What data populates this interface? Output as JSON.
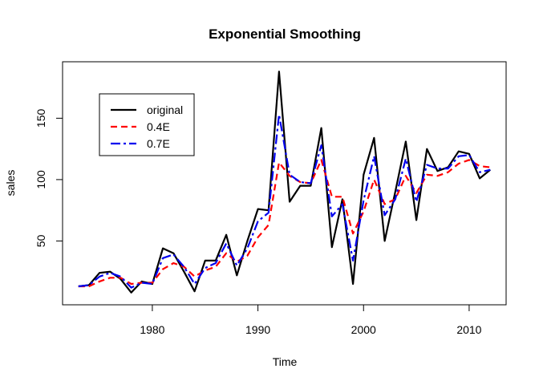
{
  "chart_data": {
    "type": "line",
    "title": "Exponential Smoothing",
    "xlabel": "Time",
    "ylabel": "sales",
    "xlim": [
      1971.5,
      2013.5
    ],
    "ylim": [
      -2,
      196
    ],
    "xticks": [
      1980,
      1990,
      2000,
      2010
    ],
    "yticks": [
      50,
      100,
      150
    ],
    "x": [
      1973,
      1974,
      1975,
      1976,
      1977,
      1978,
      1979,
      1980,
      1981,
      1982,
      1983,
      1984,
      1985,
      1986,
      1987,
      1988,
      1989,
      1990,
      1991,
      1992,
      1993,
      1994,
      1995,
      1996,
      1997,
      1998,
      1999,
      2000,
      2001,
      2002,
      2003,
      2004,
      2005,
      2006,
      2007,
      2008,
      2009,
      2010,
      2011,
      2012
    ],
    "series": [
      {
        "name": "original",
        "color": "#000000",
        "dash": "solid",
        "values": [
          13,
          14,
          24,
          25,
          19,
          8,
          17,
          15,
          44,
          40,
          25,
          9,
          34,
          34,
          55,
          22,
          50,
          76,
          75,
          188,
          82,
          95,
          95,
          142,
          45,
          84,
          15,
          104,
          134,
          50,
          90,
          131,
          67,
          125,
          107,
          110,
          123,
          121,
          101,
          108
        ]
      },
      {
        "name": "0.4E",
        "color": "#ff0000",
        "dash": "dashed",
        "values": [
          13,
          13,
          17,
          20,
          20,
          15,
          16,
          16,
          27,
          32,
          29,
          21,
          26,
          29,
          40,
          33,
          38,
          53,
          63,
          114,
          103,
          98,
          97,
          116,
          86,
          86,
          56,
          74,
          100,
          80,
          84,
          103,
          89,
          104,
          103,
          106,
          113,
          116,
          111,
          110
        ]
      },
      {
        "name": "0.7E",
        "color": "#0000ee",
        "dash": "dashdot",
        "values": [
          13,
          14,
          21,
          24,
          21,
          12,
          16,
          15,
          36,
          39,
          29,
          15,
          28,
          32,
          48,
          30,
          44,
          66,
          73,
          153,
          104,
          98,
          97,
          128,
          70,
          80,
          34,
          83,
          119,
          71,
          84,
          117,
          82,
          112,
          109,
          109,
          119,
          120,
          106,
          108
        ]
      }
    ],
    "legend": {
      "position": "top-left",
      "entries": [
        "original",
        "0.4E",
        "0.7E"
      ]
    },
    "grid": false
  }
}
